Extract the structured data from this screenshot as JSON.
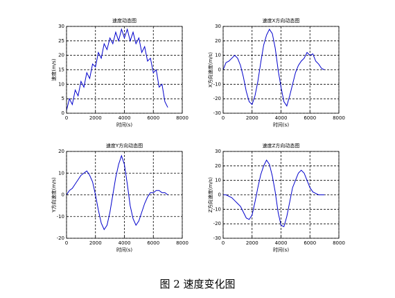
{
  "chart_data": [
    {
      "type": "line",
      "title": "速度动态图",
      "xlabel": "时间(s)",
      "ylabel": "速度(m/s)",
      "x": [
        0,
        200,
        400,
        600,
        800,
        1000,
        1200,
        1400,
        1600,
        1800,
        2000,
        2200,
        2400,
        2600,
        2800,
        3000,
        3200,
        3400,
        3600,
        3800,
        4000,
        4200,
        4400,
        4600,
        4800,
        5000,
        5200,
        5400,
        5600,
        5800,
        6000,
        6200,
        6400,
        6600,
        6800,
        7000
      ],
      "series": [
        {
          "color": "#0000cc",
          "values": [
            1,
            5,
            3,
            8,
            6,
            11,
            9,
            14,
            12,
            17,
            16,
            21,
            19,
            24,
            22,
            26,
            24,
            28,
            25,
            29,
            26,
            29,
            25,
            28,
            24,
            26,
            21,
            23,
            18,
            19,
            14,
            15,
            9,
            10,
            4,
            2
          ]
        }
      ],
      "xlim": [
        0,
        8000
      ],
      "xticks": [
        0,
        2000,
        4000,
        6000,
        8000
      ],
      "ylim": [
        0,
        30
      ],
      "yticks": [
        0,
        5,
        10,
        15,
        20,
        25,
        30
      ],
      "grid": true
    },
    {
      "type": "line",
      "title": "速度X方向动态图",
      "xlabel": "时间(s)",
      "ylabel": "X方向速度(m/s)",
      "x": [
        0,
        200,
        400,
        600,
        800,
        1000,
        1200,
        1400,
        1600,
        1800,
        2000,
        2200,
        2400,
        2600,
        2800,
        3000,
        3200,
        3400,
        3600,
        3800,
        4000,
        4200,
        4400,
        4600,
        4800,
        5000,
        5200,
        5400,
        5600,
        5800,
        6000,
        6200,
        6400,
        6600,
        6800,
        7000
      ],
      "series": [
        {
          "color": "#0000cc",
          "values": [
            0,
            5,
            6,
            8,
            10,
            8,
            3,
            -5,
            -15,
            -22,
            -24,
            -18,
            -8,
            5,
            17,
            24,
            28,
            25,
            15,
            0,
            -12,
            -22,
            -25,
            -18,
            -10,
            -2,
            3,
            6,
            8,
            12,
            10,
            11,
            6,
            4,
            1,
            0
          ]
        }
      ],
      "xlim": [
        0,
        8000
      ],
      "xticks": [
        0,
        2000,
        4000,
        6000,
        8000
      ],
      "ylim": [
        -30,
        30
      ],
      "yticks": [
        -30,
        -20,
        -10,
        0,
        10,
        20,
        30
      ],
      "grid": true
    },
    {
      "type": "line",
      "title": "速度Y方向动态图",
      "xlabel": "时间(s)",
      "ylabel": "Y方向速度(m/s)",
      "x": [
        0,
        200,
        400,
        600,
        800,
        1000,
        1200,
        1400,
        1600,
        1800,
        2000,
        2200,
        2400,
        2600,
        2800,
        3000,
        3200,
        3400,
        3600,
        3800,
        4000,
        4200,
        4400,
        4600,
        4800,
        5000,
        5200,
        5400,
        5600,
        5800,
        6000,
        6200,
        6400,
        6600,
        6800,
        7000
      ],
      "series": [
        {
          "color": "#0000cc",
          "values": [
            0,
            2,
            3,
            5,
            7,
            9,
            10,
            11,
            9,
            6,
            0,
            -7,
            -13,
            -16,
            -14,
            -8,
            0,
            8,
            14,
            18,
            14,
            5,
            -5,
            -11,
            -14,
            -12,
            -8,
            -4,
            -1,
            1,
            1,
            2,
            2,
            1,
            1,
            0
          ]
        }
      ],
      "xlim": [
        0,
        8000
      ],
      "xticks": [
        0,
        2000,
        4000,
        6000,
        8000
      ],
      "ylim": [
        -20,
        20
      ],
      "yticks": [
        -20,
        -10,
        0,
        10,
        20
      ],
      "grid": true
    },
    {
      "type": "line",
      "title": "速度Z方向动态图",
      "xlabel": "时间(s)",
      "ylabel": "Z方向速度(m/s)",
      "x": [
        0,
        200,
        400,
        600,
        800,
        1000,
        1200,
        1400,
        1600,
        1800,
        2000,
        2200,
        2400,
        2600,
        2800,
        3000,
        3200,
        3400,
        3600,
        3800,
        4000,
        4200,
        4400,
        4600,
        4800,
        5000,
        5200,
        5400,
        5600,
        5800,
        6000,
        6200,
        6400,
        6600,
        6800,
        7000
      ],
      "series": [
        {
          "color": "#0000cc",
          "values": [
            0,
            0,
            -1,
            -2,
            -4,
            -6,
            -8,
            -12,
            -16,
            -17,
            -14,
            -5,
            5,
            14,
            20,
            24,
            21,
            13,
            2,
            -12,
            -21,
            -22,
            -15,
            -5,
            5,
            10,
            15,
            17,
            15,
            10,
            5,
            2,
            1,
            0,
            0,
            0
          ]
        }
      ],
      "xlim": [
        0,
        8000
      ],
      "xticks": [
        0,
        2000,
        4000,
        6000,
        8000
      ],
      "ylim": [
        -30,
        30
      ],
      "yticks": [
        -30,
        -20,
        -10,
        0,
        10,
        20,
        30
      ],
      "grid": true
    }
  ],
  "caption": "图 2  速度变化图"
}
